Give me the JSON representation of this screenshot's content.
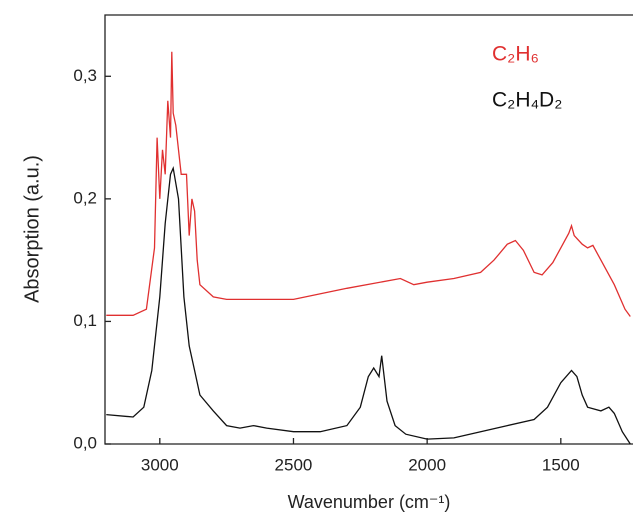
{
  "chart_data": {
    "type": "line",
    "x_label": "Wavenumber (cm⁻¹)",
    "y_label": "Absorption (a.u.)",
    "xlim": [
      3205,
      1230
    ],
    "ylim": [
      0,
      0.35
    ],
    "xticks": [
      3000,
      2500,
      2000,
      1500
    ],
    "yticks": [
      {
        "value": 0,
        "label": "0,0"
      },
      {
        "value": 0.1,
        "label": "0,1"
      },
      {
        "value": 0.2,
        "label": "0,2"
      },
      {
        "value": 0.3,
        "label": "0,3"
      }
    ],
    "series": [
      {
        "name": "C₂H₆",
        "color": "#e03030",
        "x": [
          3200,
          3100,
          3050,
          3020,
          3010,
          3000,
          2990,
          2980,
          2970,
          2960,
          2955,
          2950,
          2940,
          2930,
          2920,
          2900,
          2890,
          2880,
          2870,
          2860,
          2850,
          2800,
          2750,
          2500,
          2300,
          2100,
          2050,
          2000,
          1900,
          1800,
          1750,
          1700,
          1670,
          1640,
          1600,
          1570,
          1530,
          1500,
          1470,
          1460,
          1450,
          1420,
          1400,
          1380,
          1350,
          1300,
          1260,
          1240
        ],
        "values": [
          0.105,
          0.105,
          0.11,
          0.16,
          0.25,
          0.2,
          0.24,
          0.22,
          0.28,
          0.25,
          0.32,
          0.27,
          0.26,
          0.24,
          0.22,
          0.22,
          0.17,
          0.2,
          0.19,
          0.15,
          0.13,
          0.12,
          0.118,
          0.118,
          0.127,
          0.135,
          0.13,
          0.132,
          0.135,
          0.14,
          0.15,
          0.163,
          0.166,
          0.158,
          0.14,
          0.138,
          0.148,
          0.16,
          0.172,
          0.178,
          0.17,
          0.163,
          0.16,
          0.162,
          0.15,
          0.13,
          0.11,
          0.104
        ]
      },
      {
        "name": "C₂H₄D₂",
        "color": "#111111",
        "x": [
          3200,
          3100,
          3060,
          3030,
          3000,
          2980,
          2960,
          2950,
          2930,
          2910,
          2890,
          2870,
          2850,
          2800,
          2750,
          2700,
          2650,
          2600,
          2500,
          2400,
          2300,
          2250,
          2220,
          2200,
          2180,
          2170,
          2150,
          2120,
          2080,
          2000,
          1900,
          1800,
          1700,
          1600,
          1550,
          1500,
          1460,
          1440,
          1420,
          1400,
          1350,
          1320,
          1300,
          1270,
          1240
        ],
        "values": [
          0.024,
          0.022,
          0.03,
          0.06,
          0.12,
          0.18,
          0.22,
          0.225,
          0.2,
          0.12,
          0.08,
          0.06,
          0.04,
          0.027,
          0.015,
          0.013,
          0.015,
          0.013,
          0.01,
          0.01,
          0.015,
          0.03,
          0.055,
          0.062,
          0.055,
          0.072,
          0.035,
          0.015,
          0.008,
          0.004,
          0.005,
          0.01,
          0.015,
          0.02,
          0.03,
          0.05,
          0.06,
          0.055,
          0.04,
          0.03,
          0.027,
          0.03,
          0.025,
          0.01,
          0
        ]
      }
    ]
  }
}
